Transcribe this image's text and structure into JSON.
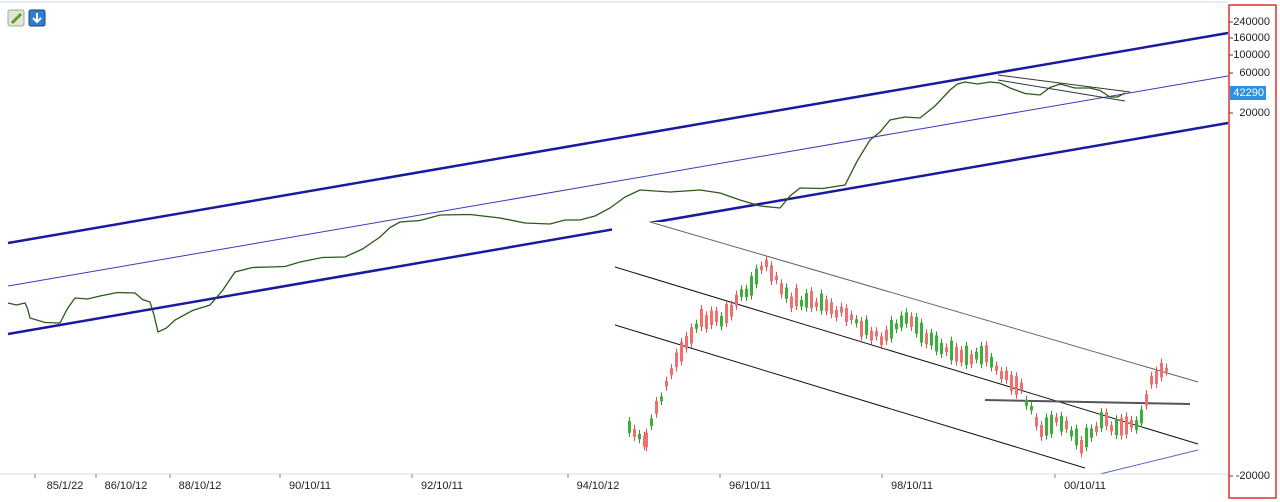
{
  "price_axis": {
    "ticks": [
      "240000",
      "160000",
      "100000",
      "60000",
      "20000",
      "-20000"
    ],
    "current_price": "42290"
  },
  "time_axis": {
    "labels": [
      "85/1/22",
      "86/10/12",
      "88/10/12",
      "90/10/11",
      "92/10/11",
      "94/10/12",
      "96/10/11",
      "98/10/11",
      "00/10/11"
    ]
  }
}
